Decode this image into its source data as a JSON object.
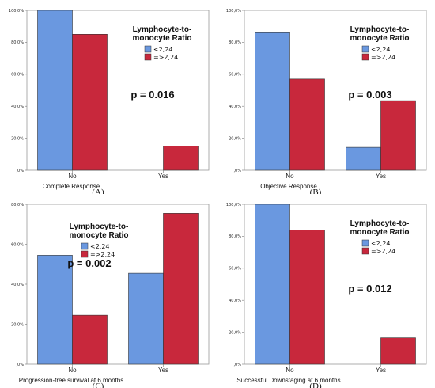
{
  "colors": {
    "series1": "#6a98e0",
    "series2": "#c8283c",
    "frame": "#9a9a9a",
    "grid": "#cfcfcf"
  },
  "chart_data": [
    {
      "type": "bar",
      "panel_letter": "(A)",
      "categories": [
        "No",
        "Yes"
      ],
      "series": [
        {
          "name": "<2,24",
          "values": [
            100,
            0
          ]
        },
        {
          "name": "=>2,24",
          "values": [
            85,
            15
          ]
        }
      ],
      "ylim": [
        0,
        100
      ],
      "yticks": [
        0,
        20,
        40,
        60,
        80,
        100
      ],
      "ytick_labels": [
        ",0%",
        "20,0%",
        "40,0%",
        "60,0%",
        "80,0%",
        "100,0%"
      ],
      "xlabel": "Complete Response",
      "legend_title_lines": [
        "Lymphocyte-to-",
        "monocyte Ratio"
      ],
      "legend_position": "top-right",
      "annotation": "p = 0.016"
    },
    {
      "type": "bar",
      "panel_letter": "(B)",
      "categories": [
        "No",
        "Yes"
      ],
      "series": [
        {
          "name": "<2,24",
          "values": [
            86,
            14.3
          ]
        },
        {
          "name": "=>2,24",
          "values": [
            57,
            43.5
          ]
        }
      ],
      "ylim": [
        0,
        100
      ],
      "yticks": [
        0,
        20,
        40,
        60,
        80,
        100
      ],
      "ytick_labels": [
        ",0%",
        "20,0%",
        "40,0%",
        "60,0%",
        "80,0%",
        "100,0%"
      ],
      "xlabel": "Objective Response",
      "legend_title_lines": [
        "Lymphocyte-to-",
        "monocyte Ratio"
      ],
      "legend_position": "top-right",
      "annotation": "p = 0.003"
    },
    {
      "type": "bar",
      "panel_letter": "(C)",
      "categories": [
        "No",
        "Yes"
      ],
      "series": [
        {
          "name": "<2,24",
          "values": [
            54.5,
            45.5
          ]
        },
        {
          "name": "=>2,24",
          "values": [
            24.5,
            75.5
          ]
        }
      ],
      "ylim": [
        0,
        80
      ],
      "yticks": [
        0,
        20,
        40,
        60,
        80
      ],
      "ytick_labels": [
        ",0%",
        "20,0%",
        "40,0%",
        "60,0%",
        "80,0%"
      ],
      "xlabel": "Progression-free survival at 6 months",
      "legend_title_lines": [
        "Lymphocyte-to-",
        "monocyte Ratio"
      ],
      "legend_position": "top-left",
      "annotation": "p = 0.002"
    },
    {
      "type": "bar",
      "panel_letter": "(D)",
      "categories": [
        "No",
        "Yes"
      ],
      "series": [
        {
          "name": "<2,24",
          "values": [
            100,
            0
          ]
        },
        {
          "name": "=>2,24",
          "values": [
            84,
            16.5
          ]
        }
      ],
      "ylim": [
        0,
        100
      ],
      "yticks": [
        0,
        20,
        40,
        60,
        80,
        100
      ],
      "ytick_labels": [
        ",0%",
        "20,0%",
        "40,0%",
        "60,0%",
        "80,0%",
        "100,0%"
      ],
      "xlabel": "Successful Downstaging at 6 months",
      "legend_title_lines": [
        "Lymphocyte-to-",
        "monocyte Ratio"
      ],
      "legend_position": "top-right",
      "annotation": "p = 0.012"
    }
  ]
}
